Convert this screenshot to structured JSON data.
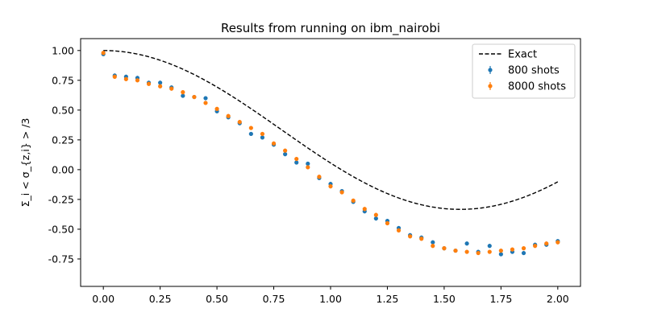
{
  "chart_data": {
    "type": "scatter",
    "title": "Results from running on ibm_nairobi",
    "xlabel": "",
    "ylabel": "Σ_i < σ_{z,i} > /3",
    "xlim": [
      -0.1,
      2.1
    ],
    "ylim": [
      -0.98,
      1.1
    ],
    "xticks": [
      "0.00",
      "0.25",
      "0.50",
      "0.75",
      "1.00",
      "1.25",
      "1.50",
      "1.75",
      "2.00"
    ],
    "yticks": [
      "-0.75",
      "-0.50",
      "-0.25",
      "0.00",
      "0.25",
      "0.50",
      "0.75",
      "1.00"
    ],
    "grid": false,
    "legend_position": "upper-right",
    "x": [
      0.0,
      0.05,
      0.1,
      0.15,
      0.2,
      0.25,
      0.3,
      0.35,
      0.4,
      0.45,
      0.5,
      0.55,
      0.6,
      0.65,
      0.7,
      0.75,
      0.8,
      0.85,
      0.9,
      0.95,
      1.0,
      1.05,
      1.1,
      1.15,
      1.2,
      1.25,
      1.3,
      1.35,
      1.4,
      1.45,
      1.5,
      1.55,
      1.6,
      1.65,
      1.7,
      1.75,
      1.8,
      1.85,
      1.9,
      1.95,
      2.0
    ],
    "series": [
      {
        "name": "Exact",
        "kind": "line",
        "style": "dashed",
        "color": "#000000",
        "formula": "(1 + 2*cos(2x)) / 3"
      },
      {
        "name": "800 shots",
        "kind": "errorbar",
        "color": "#1f77b4",
        "values": [
          0.97,
          0.79,
          0.78,
          0.77,
          0.73,
          0.73,
          0.69,
          0.62,
          0.61,
          0.6,
          0.49,
          0.44,
          0.39,
          0.3,
          0.27,
          0.21,
          0.13,
          0.06,
          0.05,
          -0.07,
          -0.12,
          -0.18,
          -0.27,
          -0.35,
          -0.41,
          -0.43,
          -0.49,
          -0.55,
          -0.57,
          -0.61,
          -0.66,
          -0.68,
          -0.62,
          -0.69,
          -0.64,
          -0.71,
          -0.69,
          -0.7,
          -0.63,
          -0.63,
          -0.6
        ]
      },
      {
        "name": "8000 shots",
        "kind": "errorbar",
        "color": "#ff7f0e",
        "values": [
          0.98,
          0.78,
          0.76,
          0.75,
          0.72,
          0.7,
          0.68,
          0.65,
          0.61,
          0.56,
          0.51,
          0.45,
          0.4,
          0.35,
          0.3,
          0.22,
          0.16,
          0.09,
          0.02,
          -0.06,
          -0.14,
          -0.19,
          -0.26,
          -0.33,
          -0.38,
          -0.45,
          -0.51,
          -0.56,
          -0.58,
          -0.64,
          -0.66,
          -0.68,
          -0.69,
          -0.7,
          -0.69,
          -0.68,
          -0.67,
          -0.66,
          -0.64,
          -0.62,
          -0.61
        ]
      }
    ]
  }
}
